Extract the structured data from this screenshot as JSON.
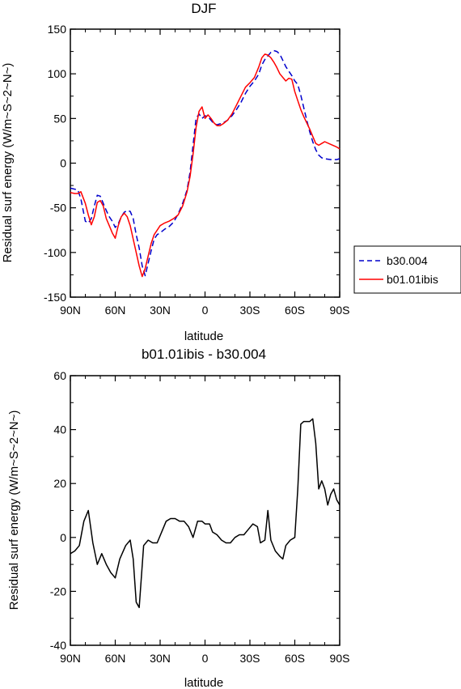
{
  "chart_data": [
    {
      "type": "line",
      "title": "DJF",
      "xlabel": "latitude",
      "ylabel": "Residual surf energy (W/m~S~2~N~)",
      "x_ticks": [
        "90N",
        "60N",
        "30N",
        "0",
        "30S",
        "60S",
        "90S"
      ],
      "x_tick_values": [
        90,
        60,
        30,
        0,
        -30,
        -60,
        -90
      ],
      "y_ticks": [
        "150",
        "100",
        "50",
        "0",
        "-50",
        "-100",
        "-150"
      ],
      "y_tick_values": [
        150,
        100,
        50,
        0,
        -50,
        -100,
        -150
      ],
      "xlim": [
        90,
        -90
      ],
      "ylim": [
        -150,
        150
      ],
      "legend_position": "right",
      "series": [
        {
          "name": "b30.004",
          "color": "#0000cc",
          "dash": "dashed",
          "x": [
            90,
            85,
            83,
            80,
            78,
            76,
            74,
            72,
            70,
            68,
            66,
            64,
            62,
            60,
            58,
            56,
            54,
            52,
            50,
            48,
            46,
            44,
            42,
            40,
            38,
            36,
            34,
            32,
            30,
            27,
            24,
            21,
            18,
            15,
            12,
            10,
            8,
            6,
            4,
            2,
            0,
            -2,
            -4,
            -6,
            -8,
            -10,
            -12,
            -15,
            -18,
            -21,
            -24,
            -27,
            -30,
            -33,
            -36,
            -38,
            -40,
            -42,
            -44,
            -46,
            -48,
            -50,
            -52,
            -54,
            -56,
            -58,
            -60,
            -62,
            -64,
            -66,
            -68,
            -70,
            -72,
            -74,
            -76,
            -78,
            -80,
            -84,
            -88,
            -90
          ],
          "y": [
            -28,
            -30,
            -40,
            -65,
            -67,
            -62,
            -48,
            -36,
            -37,
            -45,
            -53,
            -60,
            -65,
            -72,
            -68,
            -60,
            -55,
            -53,
            -54,
            -62,
            -80,
            -95,
            -115,
            -126,
            -112,
            -98,
            -85,
            -80,
            -78,
            -74,
            -71,
            -66,
            -57,
            -45,
            -30,
            -10,
            20,
            50,
            55,
            50,
            53,
            52,
            48,
            44,
            43,
            44,
            45,
            48,
            53,
            60,
            68,
            78,
            86,
            92,
            100,
            110,
            116,
            120,
            124,
            126,
            125,
            122,
            115,
            108,
            103,
            98,
            92,
            88,
            76,
            62,
            48,
            35,
            24,
            15,
            9,
            6,
            5,
            4,
            4,
            5
          ]
        },
        {
          "name": "b01.01ibis",
          "color": "#ff0000",
          "dash": "solid",
          "x": [
            90,
            87,
            85,
            83,
            80,
            78,
            76,
            74,
            72,
            70,
            68,
            66,
            64,
            62,
            60,
            58,
            56,
            54,
            52,
            50,
            48,
            46,
            44,
            42,
            40,
            38,
            36,
            34,
            32,
            30,
            27,
            24,
            21,
            18,
            15,
            12,
            10,
            8,
            6,
            4,
            2,
            0,
            -2,
            -4,
            -6,
            -8,
            -10,
            -12,
            -15,
            -18,
            -21,
            -24,
            -27,
            -30,
            -33,
            -36,
            -38,
            -40,
            -42,
            -44,
            -46,
            -48,
            -50,
            -52,
            -54,
            -56,
            -58,
            -60,
            -62,
            -64,
            -66,
            -68,
            -70,
            -72,
            -74,
            -76,
            -78,
            -80,
            -84,
            -88,
            -90
          ],
          "y": [
            -33,
            -34,
            -34,
            -32,
            -45,
            -58,
            -69,
            -60,
            -44,
            -42,
            -48,
            -62,
            -70,
            -78,
            -84,
            -70,
            -60,
            -56,
            -60,
            -70,
            -85,
            -100,
            -115,
            -127,
            -118,
            -104,
            -90,
            -80,
            -75,
            -70,
            -67,
            -65,
            -62,
            -58,
            -48,
            -32,
            -15,
            10,
            40,
            58,
            63,
            50,
            54,
            50,
            45,
            42,
            42,
            44,
            48,
            55,
            65,
            75,
            85,
            90,
            96,
            108,
            118,
            122,
            121,
            118,
            113,
            107,
            100,
            96,
            92,
            95,
            94,
            80,
            70,
            60,
            52,
            45,
            38,
            30,
            22,
            20,
            22,
            24,
            21,
            18,
            16
          ]
        }
      ]
    },
    {
      "type": "line",
      "title": "b01.01ibis - b30.004",
      "xlabel": "latitude",
      "ylabel": "Residual surf energy (W/m~S~2~N~)",
      "x_ticks": [
        "90N",
        "60N",
        "30N",
        "0",
        "30S",
        "60S",
        "90S"
      ],
      "x_tick_values": [
        90,
        60,
        30,
        0,
        -30,
        -60,
        -90
      ],
      "y_ticks": [
        "60",
        "40",
        "20",
        "0",
        "-20",
        "-40"
      ],
      "y_tick_values": [
        60,
        40,
        20,
        0,
        -20,
        -40
      ],
      "xlim": [
        90,
        -90
      ],
      "ylim": [
        -40,
        60
      ],
      "series": [
        {
          "color": "#000000",
          "dash": "solid",
          "x": [
            90,
            87,
            84,
            81,
            78,
            75,
            72,
            69,
            66,
            63,
            60,
            57,
            53,
            50,
            48,
            46,
            44,
            41,
            38,
            35,
            32,
            29,
            26,
            23,
            20,
            17,
            14,
            11,
            8,
            5,
            2,
            0,
            -3,
            -5,
            -8,
            -11,
            -14,
            -17,
            -20,
            -23,
            -26,
            -29,
            -32,
            -35,
            -37,
            -40,
            -42,
            -44,
            -47,
            -50,
            -52,
            -54,
            -57,
            -60,
            -62,
            -64,
            -66,
            -68,
            -70,
            -72,
            -74,
            -76,
            -78,
            -80,
            -82,
            -84,
            -86,
            -88,
            -90
          ],
          "y": [
            -6,
            -5,
            -3,
            6,
            10,
            -2,
            -10,
            -6,
            -10,
            -13,
            -15,
            -8,
            -3,
            -1,
            -8,
            -24,
            -26,
            -3,
            -1,
            -2,
            -2,
            2,
            6,
            7,
            7,
            6,
            6,
            4,
            0,
            6,
            6,
            5,
            5,
            2,
            1,
            -1,
            -2,
            -2,
            0,
            1,
            1,
            3,
            5,
            4,
            -2,
            -1,
            10,
            -1,
            -5,
            -7,
            -8,
            -3,
            -1,
            0,
            18,
            42,
            43,
            43,
            43,
            44,
            35,
            18,
            21,
            18,
            12,
            16,
            18,
            14,
            12
          ]
        }
      ]
    }
  ],
  "legend": {
    "items": [
      "b30.004",
      "b01.01ibis"
    ]
  }
}
